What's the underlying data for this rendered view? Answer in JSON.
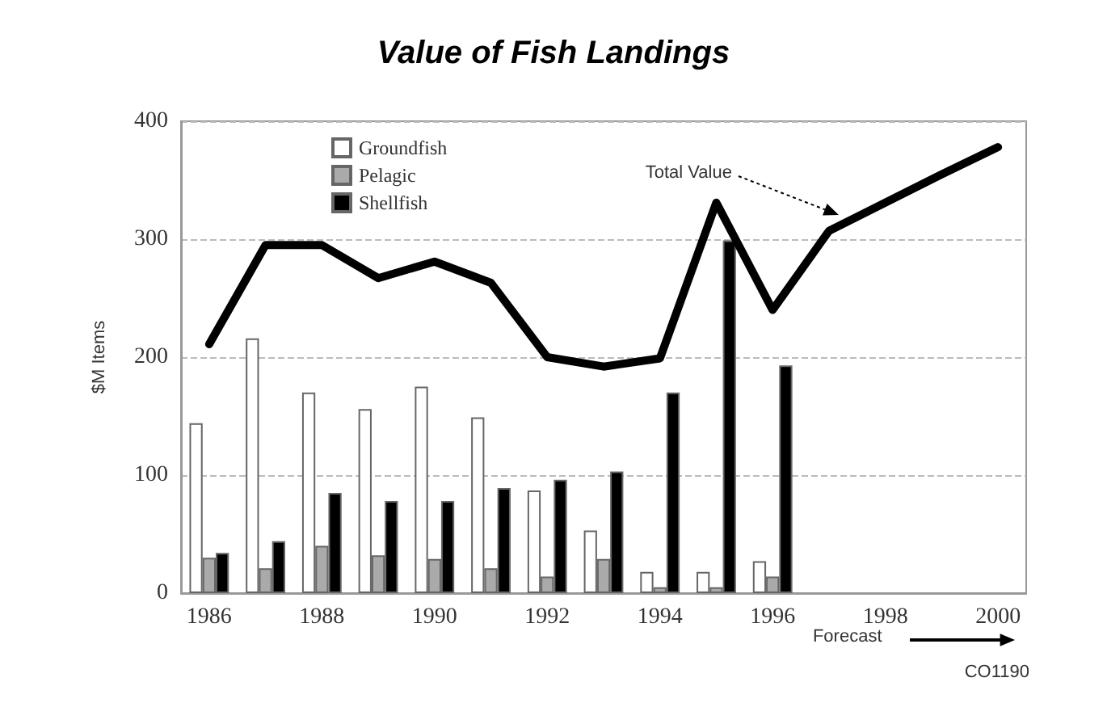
{
  "chart_data": {
    "type": "bar",
    "title": "Value of Fish Landings",
    "ylabel": "$M Items",
    "categories": [
      "1986",
      null,
      "1988",
      null,
      "1990",
      null,
      "1992",
      null,
      "1994",
      null,
      "1996",
      null,
      "1998",
      null,
      "2000"
    ],
    "series": [
      {
        "name": "Groundfish",
        "color": "#ffffff",
        "values": [
          144,
          216,
          170,
          156,
          175,
          149,
          87,
          53,
          18,
          18,
          27,
          null,
          null,
          null,
          null
        ]
      },
      {
        "name": "Pelagic",
        "color": "#aaaaaa",
        "values": [
          30,
          21,
          40,
          32,
          29,
          21,
          14,
          29,
          5,
          5,
          14,
          null,
          null,
          null,
          null
        ]
      },
      {
        "name": "Shellfish",
        "color": "#000000",
        "values": [
          34,
          44,
          85,
          78,
          78,
          89,
          96,
          103,
          170,
          299,
          193,
          null,
          null,
          null,
          null
        ]
      },
      {
        "name": "Total Value",
        "type": "line",
        "color": "#000000",
        "values": [
          211,
          295,
          295,
          267,
          281,
          263,
          200,
          192,
          199,
          331,
          240,
          307,
          331,
          355,
          378
        ]
      }
    ],
    "ylim": [
      0,
      400
    ],
    "yticks": [
      0,
      100,
      200,
      300,
      400
    ],
    "grid": "y",
    "legend": "top left",
    "marker": "none",
    "annotations": [
      "Forecast",
      "CO1190"
    ]
  }
}
